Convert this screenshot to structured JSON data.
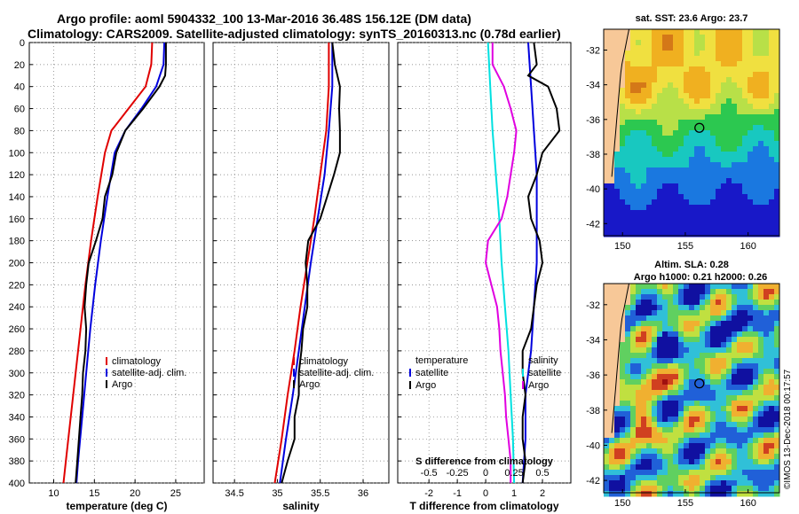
{
  "header": {
    "line1": "Argo profile: aoml 5904332_100 13-Mar-2016 36.48S 156.12E (DM data)",
    "line2": "Climatology: CARS2009. Satellite-adjusted climatology: synTS_20160313.nc (0.78d earlier)"
  },
  "watermark": "©IMOS 13-Dec-2018 00:17:57",
  "colors": {
    "climatology": "#e00000",
    "satellite": "#0000dd",
    "argo": "#000000",
    "magenta": "#e000e0",
    "cyan": "#00e0e0"
  },
  "chart_data": [
    {
      "type": "line",
      "title": "",
      "xlabel": "temperature (deg C)",
      "ylabel": "",
      "xlim": [
        7,
        28.5
      ],
      "ylim": [
        0,
        400
      ],
      "x_ticks": [
        10,
        15,
        20,
        25
      ],
      "y_ticks": [
        0,
        20,
        40,
        60,
        80,
        100,
        120,
        140,
        160,
        180,
        200,
        220,
        240,
        260,
        280,
        300,
        320,
        340,
        360,
        380,
        400
      ],
      "legend": {
        "position": "bottom-right",
        "entries": [
          "climatology",
          "satellite-adj. clim.",
          "Argo"
        ]
      },
      "series": [
        {
          "name": "climatology",
          "color": "#e00000",
          "depth": [
            0,
            20,
            40,
            60,
            80,
            100,
            140,
            180,
            220,
            260,
            300,
            340,
            380,
            400
          ],
          "values": [
            22.1,
            22.0,
            21.3,
            19.2,
            17.1,
            16.3,
            15.4,
            14.6,
            13.9,
            13.3,
            12.7,
            12.1,
            11.5,
            11.2
          ]
        },
        {
          "name": "satellite-adj. clim.",
          "color": "#0000dd",
          "depth": [
            0,
            20,
            40,
            60,
            80,
            100,
            140,
            180,
            220,
            260,
            300,
            340,
            380,
            400
          ],
          "values": [
            23.6,
            23.5,
            22.6,
            20.8,
            18.8,
            17.5,
            16.6,
            15.8,
            15.1,
            14.5,
            14.0,
            13.5,
            13.0,
            12.8
          ]
        },
        {
          "name": "Argo",
          "color": "#000000",
          "depth": [
            0,
            20,
            30,
            40,
            60,
            80,
            100,
            120,
            140,
            160,
            180,
            200,
            220,
            240,
            260,
            280,
            300,
            320,
            340,
            360,
            380,
            400
          ],
          "values": [
            23.8,
            23.8,
            23.7,
            23.0,
            21.0,
            18.8,
            17.7,
            17.2,
            16.3,
            16.0,
            15.2,
            14.3,
            14.0,
            13.8,
            14.0,
            13.9,
            13.6,
            13.5,
            13.3,
            13.1,
            12.9,
            12.7
          ]
        }
      ]
    },
    {
      "type": "line",
      "title": "",
      "xlabel": "salinity",
      "ylabel": "",
      "xlim": [
        34.25,
        36.3
      ],
      "ylim": [
        0,
        400
      ],
      "x_ticks": [
        34.5,
        35,
        35.5,
        36
      ],
      "x_tick_labels": [
        "34.5",
        "35",
        "35.5",
        "36"
      ],
      "legend": {
        "position": "bottom-right",
        "entries": [
          "climatology",
          "satellite-adj. clim.",
          "Argo"
        ]
      },
      "series": [
        {
          "name": "climatology",
          "color": "#e00000",
          "depth": [
            0,
            40,
            80,
            120,
            160,
            200,
            240,
            280,
            320,
            360,
            400
          ],
          "values": [
            35.6,
            35.6,
            35.57,
            35.5,
            35.43,
            35.35,
            35.27,
            35.2,
            35.12,
            35.05,
            34.97
          ]
        },
        {
          "name": "satellite-adj. clim.",
          "color": "#0000dd",
          "depth": [
            0,
            40,
            80,
            120,
            160,
            200,
            240,
            280,
            320,
            360,
            400
          ],
          "values": [
            35.64,
            35.64,
            35.6,
            35.55,
            35.47,
            35.39,
            35.32,
            35.25,
            35.18,
            35.1,
            35.03
          ]
        },
        {
          "name": "Argo",
          "color": "#000000",
          "depth": [
            0,
            20,
            40,
            60,
            80,
            100,
            120,
            140,
            160,
            180,
            200,
            220,
            240,
            260,
            280,
            300,
            320,
            340,
            360,
            380,
            400
          ],
          "values": [
            35.64,
            35.67,
            35.73,
            35.72,
            35.73,
            35.73,
            35.66,
            35.58,
            35.5,
            35.36,
            35.33,
            35.35,
            35.35,
            35.3,
            35.28,
            35.25,
            35.25,
            35.2,
            35.2,
            35.12,
            35.05
          ]
        }
      ]
    },
    {
      "type": "line",
      "title": "",
      "xlabel": "T difference from climatology",
      "xlabel_top": "S difference from climatology",
      "ylabel": "",
      "xlim": [
        -3.1,
        3.0
      ],
      "ylim": [
        0,
        400
      ],
      "x_ticks": [
        -2,
        -1,
        0,
        1,
        2
      ],
      "s_ticks": [
        "-0.5",
        "-0.25",
        "0",
        "0.25",
        "0.5"
      ],
      "legend": {
        "position": "bottom",
        "entries": [
          "temperature",
          "satellite",
          "Argo",
          "salinity",
          "satellite",
          "Argo"
        ]
      },
      "series": [
        {
          "name": "T satellite",
          "color": "#0000dd",
          "depth": [
            0,
            40,
            80,
            120,
            160,
            200,
            240,
            280,
            320,
            360,
            400
          ],
          "values": [
            1.5,
            1.6,
            1.7,
            1.8,
            1.8,
            1.8,
            1.7,
            1.6,
            1.4,
            1.4,
            1.3
          ]
        },
        {
          "name": "T Argo",
          "color": "#000000",
          "depth": [
            0,
            20,
            30,
            40,
            60,
            80,
            100,
            120,
            140,
            160,
            180,
            200,
            220,
            240,
            260,
            280,
            300,
            320,
            340,
            360,
            380,
            400
          ],
          "values": [
            1.7,
            1.8,
            1.5,
            2.2,
            2.5,
            2.6,
            2.0,
            1.8,
            1.5,
            1.6,
            1.9,
            2.0,
            1.8,
            1.7,
            1.6,
            1.3,
            1.3,
            1.4,
            1.3,
            1.3,
            1.4,
            1.3
          ]
        },
        {
          "name": "S satellite",
          "color": "#00e0e0",
          "depth": [
            0,
            40,
            80,
            120,
            160,
            200,
            240,
            280,
            320,
            360,
            400
          ],
          "values": [
            0.02,
            0.04,
            0.06,
            0.09,
            0.12,
            0.14,
            0.17,
            0.2,
            0.22,
            0.24,
            0.25
          ]
        },
        {
          "name": "S Argo",
          "color": "#e000e0",
          "depth": [
            0,
            20,
            40,
            60,
            80,
            100,
            120,
            140,
            160,
            180,
            200,
            220,
            240,
            260,
            280,
            300,
            320,
            340,
            360,
            380,
            400
          ],
          "values": [
            0.06,
            0.06,
            0.16,
            0.22,
            0.27,
            0.25,
            0.22,
            0.19,
            0.14,
            0.02,
            0.0,
            0.05,
            0.1,
            0.12,
            0.13,
            0.15,
            0.17,
            0.18,
            0.2,
            0.22,
            0.22
          ]
        }
      ]
    },
    {
      "type": "heatmap",
      "title": "sat. SST: 23.6 Argo: 23.7",
      "lon_ticks": [
        "150",
        "155",
        "160"
      ],
      "lat_ticks": [
        "-32",
        "-34",
        "-36",
        "-38",
        "-40",
        "-42"
      ],
      "argo_lon": 156.12,
      "argo_lat": -36.48
    },
    {
      "type": "heatmap",
      "title": "Altim. SLA: 0.28",
      "subtitle": "Argo h1000: 0.21 h2000: 0.26",
      "lon_ticks": [
        "150",
        "155",
        "160"
      ],
      "lat_ticks": [
        "-32",
        "-34",
        "-36",
        "-38",
        "-40",
        "-42"
      ],
      "argo_lon": 156.12,
      "argo_lat": -36.48
    }
  ]
}
